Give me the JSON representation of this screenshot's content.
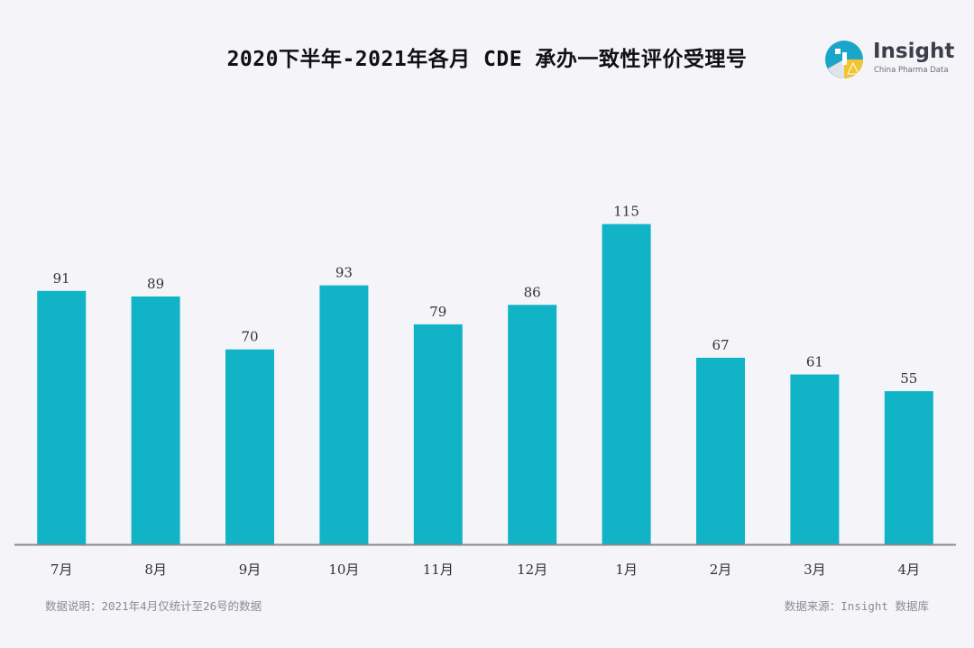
{
  "title": "2020下半年-2021年各月 CDE 承办一致性评价受理号",
  "logo": {
    "name": "Insight",
    "tagline": "China Pharma Data"
  },
  "chart_data": {
    "type": "bar",
    "categories": [
      "7月",
      "8月",
      "9月",
      "10月",
      "11月",
      "12月",
      "1月",
      "2月",
      "3月",
      "4月"
    ],
    "values": [
      91,
      89,
      70,
      93,
      79,
      86,
      115,
      67,
      61,
      55
    ],
    "title": "2020下半年-2021年各月 CDE 承办一致性评价受理号",
    "xlabel": "",
    "ylabel": "",
    "ylim": [
      0,
      120
    ],
    "grid": false,
    "bar_color": "#11b3c6",
    "axis_color": "#8a8a8a"
  },
  "footnote": "数据说明：2021年4月仅统计至26号的数据",
  "source": "数据来源：Insight 数据库"
}
